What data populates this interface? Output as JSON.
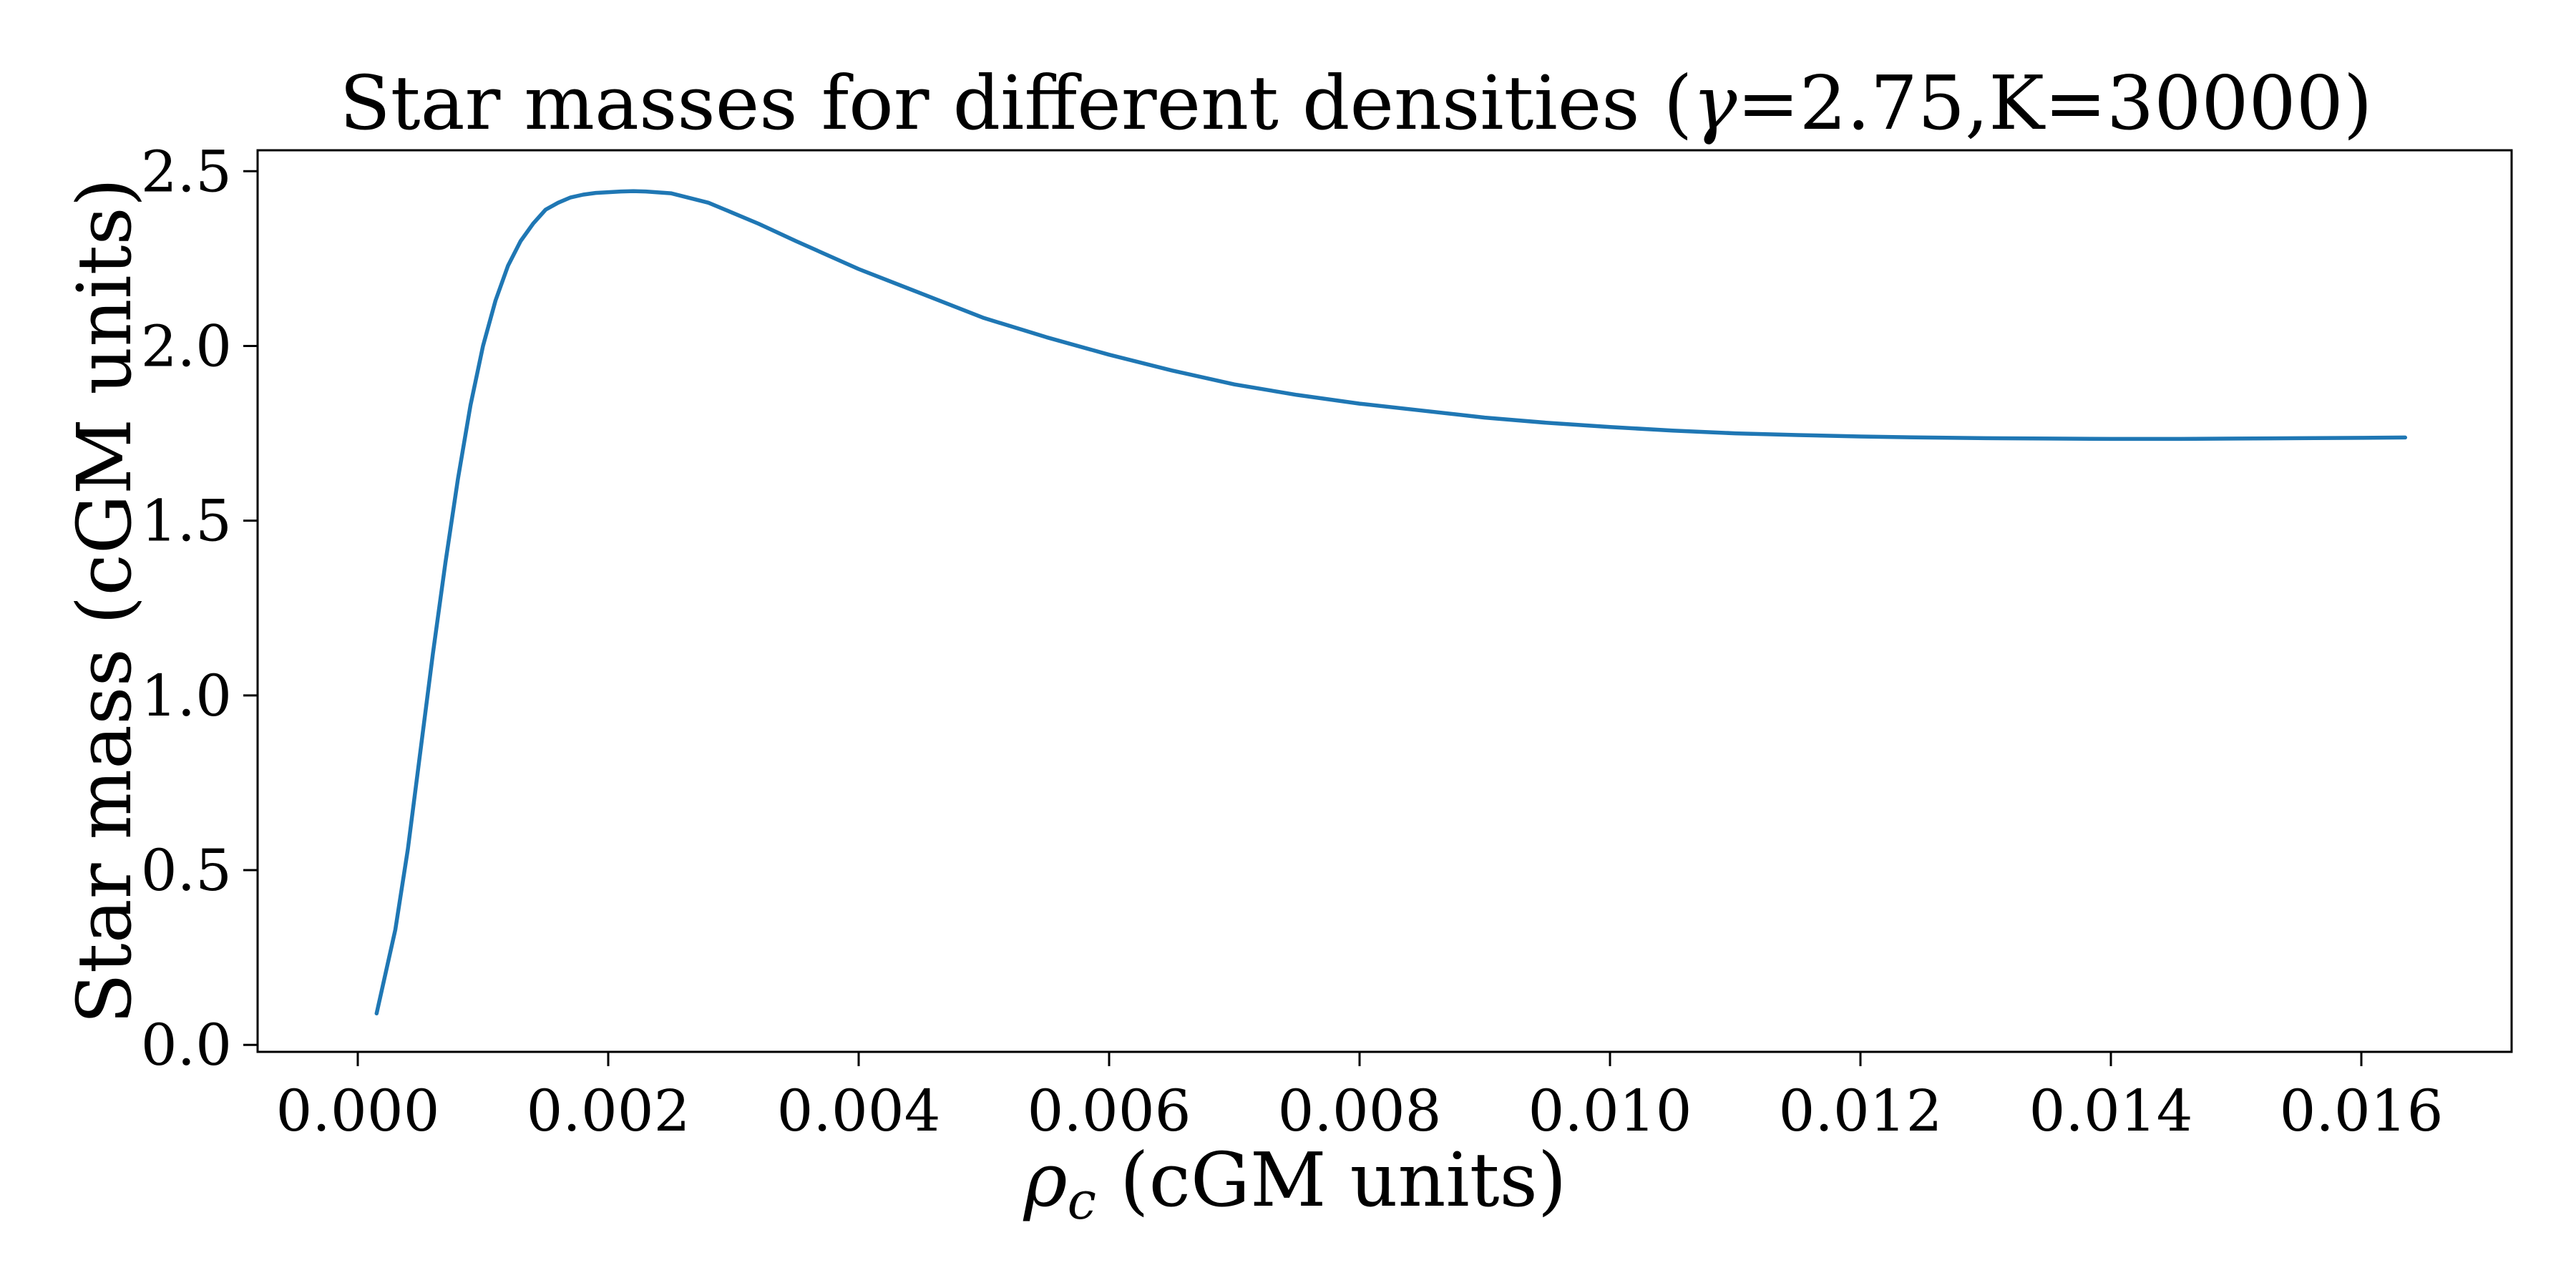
{
  "chart_data": {
    "type": "line",
    "title_prefix": "Star masses for different densities (",
    "title_symbol": "γ",
    "title_suffix": "=2.75,K=30000)",
    "xlabel_symbol": "ρ",
    "xlabel_subscript": "c",
    "xlabel_suffix": " (cGM units)",
    "ylabel": "Star mass (cGM units)",
    "xlim": [
      -0.0008,
      0.0172
    ],
    "ylim": [
      -0.02,
      2.56
    ],
    "xticks": [
      0.0,
      0.002,
      0.004,
      0.006,
      0.008,
      0.01,
      0.012,
      0.014,
      0.016
    ],
    "xtick_labels": [
      "0.000",
      "0.002",
      "0.004",
      "0.006",
      "0.008",
      "0.010",
      "0.012",
      "0.014",
      "0.016"
    ],
    "yticks": [
      0.0,
      0.5,
      1.0,
      1.5,
      2.0,
      2.5
    ],
    "ytick_labels": [
      "0.0",
      "0.5",
      "1.0",
      "1.5",
      "2.0",
      "2.5"
    ],
    "grid": false,
    "series": [
      {
        "color": "#1f77b4",
        "x": [
          0.00015,
          0.0003,
          0.0004,
          0.0005,
          0.0006,
          0.0007,
          0.0008,
          0.0009,
          0.001,
          0.0011,
          0.0012,
          0.0013,
          0.0014,
          0.0015,
          0.0016,
          0.0017,
          0.0018,
          0.0019,
          0.002,
          0.0021,
          0.0022,
          0.0023,
          0.0025,
          0.0028,
          0.003,
          0.0032,
          0.0035,
          0.004,
          0.0045,
          0.005,
          0.0055,
          0.006,
          0.0065,
          0.007,
          0.0075,
          0.008,
          0.0085,
          0.009,
          0.0095,
          0.01,
          0.0105,
          0.011,
          0.0115,
          0.012,
          0.0125,
          0.013,
          0.0135,
          0.014,
          0.0145,
          0.015,
          0.0155,
          0.016,
          0.01635
        ],
        "y": [
          0.09,
          0.33,
          0.56,
          0.84,
          1.12,
          1.38,
          1.62,
          1.83,
          2.0,
          2.13,
          2.23,
          2.3,
          2.35,
          2.39,
          2.41,
          2.425,
          2.433,
          2.438,
          2.44,
          2.442,
          2.443,
          2.442,
          2.437,
          2.41,
          2.38,
          2.35,
          2.3,
          2.22,
          2.15,
          2.08,
          2.025,
          1.975,
          1.93,
          1.89,
          1.86,
          1.835,
          1.815,
          1.795,
          1.78,
          1.768,
          1.758,
          1.75,
          1.745,
          1.741,
          1.738,
          1.736,
          1.735,
          1.734,
          1.734,
          1.735,
          1.736,
          1.737,
          1.738
        ]
      }
    ]
  }
}
